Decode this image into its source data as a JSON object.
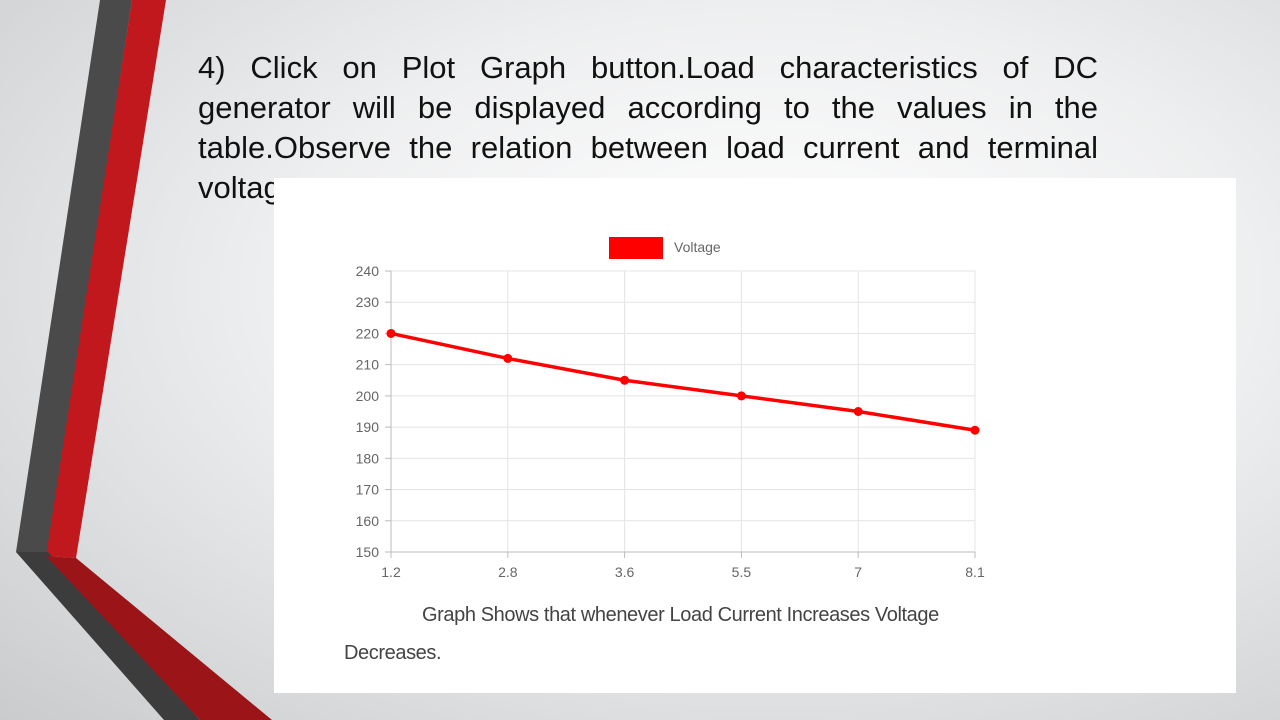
{
  "slide": {
    "instruction": "4) Click on Plot Graph button.Load characteristics of DC generator  will be displayed according to the values in the table.Observe the relation between load current and terminal voltag"
  },
  "figure": {
    "caption": "Graph Shows that whenever Load Current Increases Voltage Decreases."
  },
  "colors": {
    "series": "#ff0000",
    "grid": "#e4e4e4",
    "text": "#666666"
  },
  "chart_data": {
    "type": "line",
    "title": "",
    "xlabel": "",
    "ylabel": "",
    "categories": [
      "1.2",
      "2.8",
      "3.6",
      "5.5",
      "7",
      "8.1"
    ],
    "series": [
      {
        "name": "Voltage",
        "values": [
          220,
          212,
          205,
          200,
          195,
          189
        ]
      }
    ],
    "ylim": [
      150,
      240
    ],
    "y_ticks": [
      150,
      160,
      170,
      180,
      190,
      200,
      210,
      220,
      230,
      240
    ],
    "grid": true,
    "legend": "top-center"
  }
}
